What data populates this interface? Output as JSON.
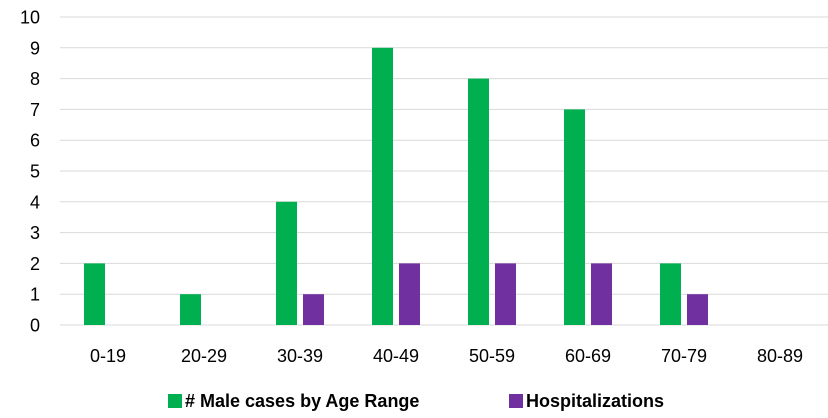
{
  "chart_data": {
    "type": "bar",
    "categories": [
      "0-19",
      "20-29",
      "30-39",
      "40-49",
      "50-59",
      "60-69",
      "70-79",
      "80-89"
    ],
    "series": [
      {
        "name": "# Male cases by Age Range",
        "color": "#00b050",
        "values": [
          2,
          1,
          4,
          9,
          8,
          7,
          2,
          0
        ]
      },
      {
        "name": "Hospitalizations",
        "color": "#7030a0",
        "values": [
          0,
          0,
          1,
          2,
          2,
          2,
          1,
          0
        ]
      }
    ],
    "ylim": [
      0,
      10
    ],
    "yticks": [
      0,
      1,
      2,
      3,
      4,
      5,
      6,
      7,
      8,
      9,
      10
    ],
    "grid": true,
    "legend_position": "bottom"
  }
}
